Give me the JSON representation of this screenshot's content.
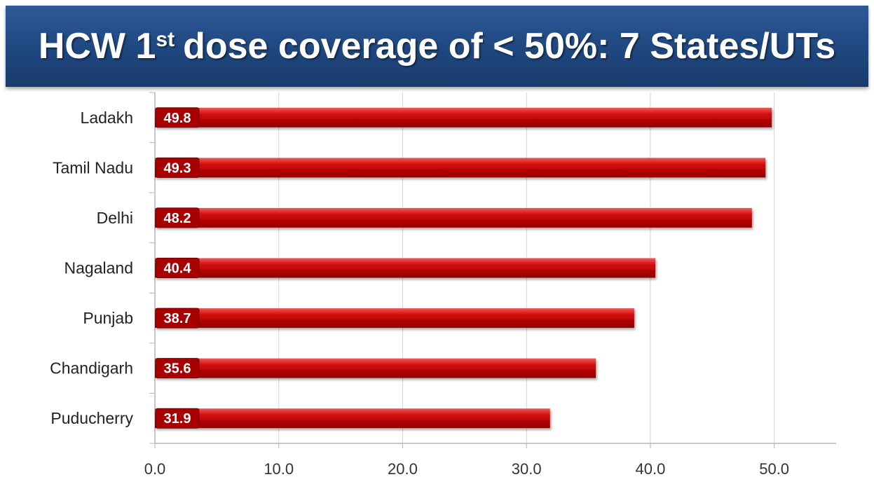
{
  "title": {
    "pre": "HCW 1",
    "sup": "st",
    "post": "dose coverage of < 50%: 7 States/UTs"
  },
  "chart_data": {
    "type": "bar",
    "orientation": "horizontal",
    "categories": [
      "Ladakh",
      "Tamil Nadu",
      "Delhi",
      "Nagaland",
      "Punjab",
      "Chandigarh",
      "Puducherry"
    ],
    "values": [
      49.8,
      49.3,
      48.2,
      40.4,
      38.7,
      35.6,
      31.9
    ],
    "data_labels": [
      "49.8",
      "49.3",
      "48.2",
      "40.4",
      "38.7",
      "35.6",
      "31.9"
    ],
    "xlim": [
      0,
      55
    ],
    "xticks": [
      0,
      10,
      20,
      30,
      40,
      50
    ],
    "xtick_labels": [
      "0.0",
      "10.0",
      "20.0",
      "30.0",
      "40.0",
      "50.0"
    ],
    "grid": "vertical",
    "bar_color": "#c40000",
    "label_color": "#ffffff"
  }
}
